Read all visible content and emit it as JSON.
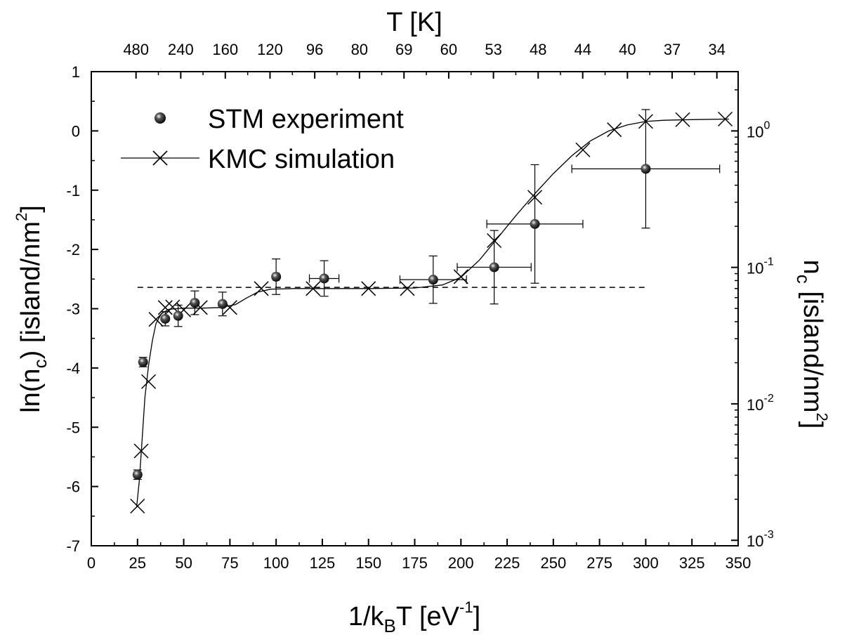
{
  "chart_data": {
    "type": "scatter",
    "xlabel": {
      "pre": "1/k",
      "sub": "B",
      "mid": "T [eV",
      "sup": "-1",
      "post": "]"
    },
    "ylabel": {
      "pre": "ln(n",
      "sub": "c",
      "mid": ") [island/nm",
      "sup": "2",
      "post": "]"
    },
    "top_axis_title": "T [K]",
    "right_axis_title": {
      "pre": "n",
      "sub": "c",
      "mid": " [island/nm",
      "sup": "2",
      "post": "]"
    },
    "xlim": [
      0,
      350
    ],
    "ylim": [
      -7,
      1
    ],
    "x_ticks": [
      0,
      25,
      50,
      75,
      100,
      125,
      150,
      175,
      200,
      225,
      250,
      275,
      300,
      325,
      350
    ],
    "x_tick_labels": [
      "0",
      "25",
      "50",
      "75",
      "100",
      "125",
      "150",
      "175",
      "200",
      "225",
      "250",
      "275",
      "300",
      "325",
      "350"
    ],
    "y_ticks": [
      1,
      0,
      -1,
      -2,
      -3,
      -4,
      -5,
      -6,
      -7
    ],
    "y_tick_labels": [
      "1",
      "0",
      "-1",
      "-2",
      "-3",
      "-4",
      "-5",
      "-6",
      "-7"
    ],
    "top_ticks": [
      {
        "label": "480",
        "x": 24.2
      },
      {
        "label": "240",
        "x": 48.4
      },
      {
        "label": "160",
        "x": 72.5
      },
      {
        "label": "120",
        "x": 96.7
      },
      {
        "label": "96",
        "x": 120.9
      },
      {
        "label": "80",
        "x": 145.1
      },
      {
        "label": "69",
        "x": 169.2
      },
      {
        "label": "60",
        "x": 193.4
      },
      {
        "label": "53",
        "x": 217.6
      },
      {
        "label": "48",
        "x": 241.8
      },
      {
        "label": "44",
        "x": 265.9
      },
      {
        "label": "40",
        "x": 290.1
      },
      {
        "label": "37",
        "x": 314.3
      },
      {
        "label": "34",
        "x": 338.5
      }
    ],
    "right_ticks": [
      {
        "base": "10",
        "exp": "0",
        "ln": 0
      },
      {
        "base": "10",
        "exp": "-1",
        "ln": -2.3026
      },
      {
        "base": "10",
        "exp": "-2",
        "ln": -4.6052
      },
      {
        "base": "10",
        "exp": "-3",
        "ln": -6.9078
      }
    ],
    "dashed_line": {
      "y": -2.64,
      "x_start": 25,
      "x_end": 300
    },
    "series": [
      {
        "name": "STM experiment",
        "marker": "sphere",
        "points": [
          {
            "x": 25,
            "y": -5.8,
            "yerr": 0.08,
            "xerr": 0
          },
          {
            "x": 28,
            "y": -3.9,
            "yerr": 0.08,
            "xerr": 0
          },
          {
            "x": 40,
            "y": -3.17,
            "yerr": 0.12,
            "xerr": 0
          },
          {
            "x": 47,
            "y": -3.12,
            "yerr": 0.18,
            "xerr": 0
          },
          {
            "x": 56,
            "y": -2.9,
            "yerr": 0.2,
            "xerr": 0
          },
          {
            "x": 71,
            "y": -2.92,
            "yerr": 0.2,
            "xerr": 0
          },
          {
            "x": 100,
            "y": -2.46,
            "yerr": 0.3,
            "xerr": 1.5
          },
          {
            "x": 126,
            "y": -2.49,
            "yerr": 0.3,
            "xerr": 8
          },
          {
            "x": 185,
            "y": -2.51,
            "yerr": 0.4,
            "xerr": 18
          },
          {
            "x": 218,
            "y": -2.3,
            "yerr": 0.62,
            "xerr": 20
          },
          {
            "x": 240,
            "y": -1.57,
            "yerr": 1.0,
            "xerr": 26
          },
          {
            "x": 300,
            "y": -0.64,
            "yerr": 1.0,
            "xerr": 40
          }
        ]
      },
      {
        "name": "KMC simulation",
        "marker": "cross",
        "points": [
          {
            "x": 25,
            "y": -6.33
          },
          {
            "x": 27,
            "y": -5.4
          },
          {
            "x": 31,
            "y": -4.23
          },
          {
            "x": 35,
            "y": -3.18
          },
          {
            "x": 40,
            "y": -2.98
          },
          {
            "x": 44,
            "y": -2.97
          },
          {
            "x": 50,
            "y": -3.02
          },
          {
            "x": 59,
            "y": -2.98
          },
          {
            "x": 75,
            "y": -2.98
          },
          {
            "x": 92,
            "y": -2.66
          },
          {
            "x": 120,
            "y": -2.66
          },
          {
            "x": 150,
            "y": -2.66
          },
          {
            "x": 171,
            "y": -2.66
          },
          {
            "x": 200,
            "y": -2.46
          },
          {
            "x": 218,
            "y": -1.85
          },
          {
            "x": 240,
            "y": -1.12
          },
          {
            "x": 266,
            "y": -0.32
          },
          {
            "x": 283,
            "y": 0.02
          },
          {
            "x": 300,
            "y": 0.16
          },
          {
            "x": 320,
            "y": 0.19
          },
          {
            "x": 343,
            "y": 0.2
          }
        ]
      }
    ],
    "fit_curve": [
      [
        24.5,
        -6.35
      ],
      [
        26,
        -5.9
      ],
      [
        27.5,
        -5.2
      ],
      [
        29,
        -4.5
      ],
      [
        31,
        -3.95
      ],
      [
        33,
        -3.55
      ],
      [
        35,
        -3.25
      ],
      [
        38,
        -3.08
      ],
      [
        42,
        -3.01
      ],
      [
        50,
        -2.99
      ],
      [
        60,
        -2.99
      ],
      [
        70,
        -2.98
      ],
      [
        78,
        -2.93
      ],
      [
        84,
        -2.82
      ],
      [
        90,
        -2.72
      ],
      [
        97,
        -2.67
      ],
      [
        110,
        -2.66
      ],
      [
        150,
        -2.66
      ],
      [
        175,
        -2.65
      ],
      [
        190,
        -2.6
      ],
      [
        200,
        -2.47
      ],
      [
        210,
        -2.18
      ],
      [
        220,
        -1.8
      ],
      [
        230,
        -1.42
      ],
      [
        240,
        -1.06
      ],
      [
        250,
        -0.72
      ],
      [
        260,
        -0.42
      ],
      [
        270,
        -0.17
      ],
      [
        280,
        0.0
      ],
      [
        290,
        0.1
      ],
      [
        300,
        0.16
      ],
      [
        310,
        0.18
      ],
      [
        325,
        0.19
      ],
      [
        345,
        0.2
      ]
    ],
    "legend": {
      "placement": "top-left"
    }
  }
}
